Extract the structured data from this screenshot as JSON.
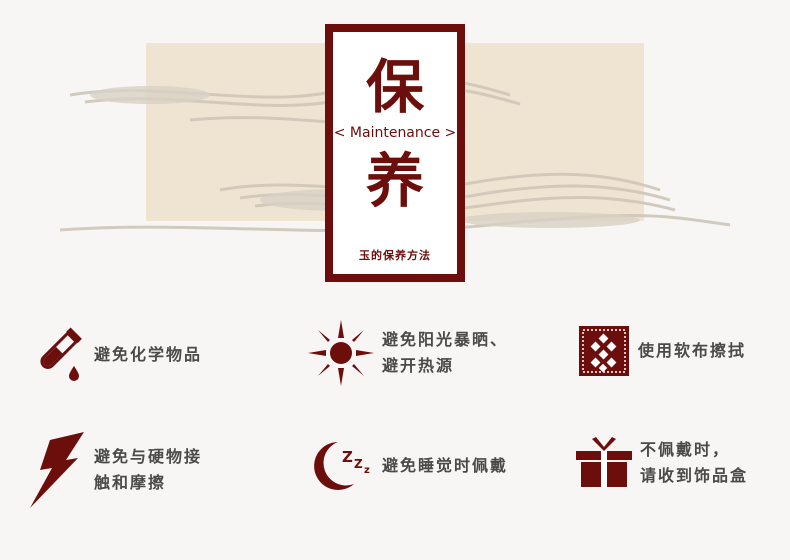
{
  "header": {
    "char_top": "保",
    "subtitle": "< Maintenance >",
    "char_bottom": "养",
    "caption": "玉的保养方法"
  },
  "colors": {
    "accent": "#6c0e0b",
    "panel": "#efe4d2",
    "text": "#4a4a4a"
  },
  "tips": [
    {
      "icon": "test-tube-icon",
      "text": "避免化学物品"
    },
    {
      "icon": "sun-icon",
      "text": "避免阳光暴晒、\n避开热源"
    },
    {
      "icon": "cloth-icon",
      "text": "使用软布擦拭"
    },
    {
      "icon": "lightning-icon",
      "text": "避免与硬物接\n触和摩擦"
    },
    {
      "icon": "moon-sleep-icon",
      "text": "避免睡觉时佩戴"
    },
    {
      "icon": "gift-box-icon",
      "text": "不佩戴时，\n请收到饰品盒"
    }
  ]
}
